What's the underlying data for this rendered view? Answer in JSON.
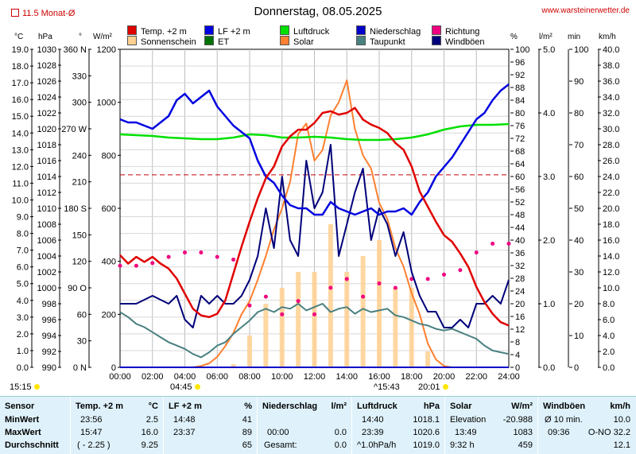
{
  "header": {
    "title": "Donnerstag, 08.05.2025",
    "site": "www.warsteinerwetter.de",
    "month_avg": "11.5 Monat-Ø"
  },
  "legend": [
    {
      "name": "Temp. +2 m",
      "color": "#e00000"
    },
    {
      "name": "LF +2 m",
      "color": "#0000e0"
    },
    {
      "name": "Luftdruck",
      "color": "#00e000"
    },
    {
      "name": "Niederschlag",
      "color": "#0000c8"
    },
    {
      "name": "Richtung",
      "color": "#f00080"
    },
    {
      "name": "Sonnenschein",
      "color": "#ffd090"
    },
    {
      "name": "ET",
      "color": "#007000"
    },
    {
      "name": "Solar",
      "color": "#ff8030"
    },
    {
      "name": "Taupunkt",
      "color": "#4a8080"
    },
    {
      "name": "Windböen",
      "color": "#00007a"
    }
  ],
  "axis_units": {
    "temp": "°C",
    "pressure": "hPa",
    "dir": "°",
    "solar": "W/m²",
    "percent": "%",
    "rain": "l/m²",
    "min": "min",
    "wind": "km/h"
  },
  "annotations": {
    "now": "15:15",
    "sunrise": "04:45",
    "solar_noon": "15:43",
    "sunset": "20:01"
  },
  "chart_data": {
    "type": "line",
    "x_ticks": [
      "00:00",
      "02:00",
      "04:00",
      "06:00",
      "08:00",
      "10:00",
      "12:00",
      "14:00",
      "16:00",
      "18:00",
      "20:00",
      "22:00",
      "24:00"
    ],
    "xlim": [
      0,
      24
    ],
    "axes": {
      "temp": {
        "ticks": [
          "19.0",
          "18.0",
          "17.0",
          "16.0",
          "15.0",
          "14.0",
          "13.0",
          "12.0",
          "11.0",
          "10.0",
          "9.0",
          "8.0",
          "7.0",
          "6.0",
          "5.0",
          "4.0",
          "3.0",
          "2.0",
          "1.0",
          "0.0"
        ],
        "ylim": [
          0,
          19
        ]
      },
      "pressure": {
        "ticks": [
          "1030",
          "1028",
          "1026",
          "1024",
          "1022",
          "1020",
          "1018",
          "1016",
          "1014",
          "1012",
          "1010",
          "1008",
          "1006",
          "1004",
          "1002",
          "1000",
          "998",
          "996",
          "994",
          "992",
          "990"
        ],
        "ylim": [
          990,
          1030
        ]
      },
      "direction": {
        "ticks": [
          "360 N",
          "330",
          "300",
          "270 W",
          "240",
          "210",
          "180 S",
          "150",
          "120",
          "90 O",
          "60",
          "30",
          "0 N"
        ],
        "ylim": [
          0,
          360
        ]
      },
      "solar": {
        "ticks": [
          "1200",
          "1000",
          "800",
          "600",
          "400",
          "200",
          "0"
        ],
        "ylim": [
          0,
          1200
        ]
      },
      "percent": {
        "ticks": [
          "100",
          "96",
          "92",
          "88",
          "84",
          "80",
          "76",
          "72",
          "68",
          "64",
          "60",
          "56",
          "52",
          "48",
          "44",
          "40",
          "36",
          "32",
          "28",
          "24",
          "20",
          "16",
          "12",
          "8",
          "4",
          "0"
        ],
        "ylim": [
          0,
          100
        ]
      },
      "rain": {
        "ticks": [
          "5.0",
          "4.0",
          "3.0",
          "2.0",
          "1.0",
          "0.0"
        ],
        "ylim": [
          0,
          5
        ]
      },
      "minutes": {
        "ticks": [
          "100",
          "90",
          "80",
          "70",
          "60",
          "50",
          "40",
          "30",
          "20",
          "10",
          "0"
        ],
        "ylim": [
          0,
          100
        ]
      },
      "wind": {
        "ticks": [
          "40.0",
          "38.0",
          "36.0",
          "34.0",
          "32.0",
          "30.0",
          "28.0",
          "26.0",
          "24.0",
          "22.0",
          "20.0",
          "18.0",
          "16.0",
          "14.0",
          "12.0",
          "10.0",
          "8.0",
          "6.0",
          "4.0",
          "2.0",
          "0.0"
        ],
        "ylim": [
          0,
          40
        ]
      }
    },
    "month_avg_temp": 11.5,
    "series": [
      {
        "name": "Temp. +2 m",
        "axis": "temp",
        "x": [
          0,
          0.5,
          1,
          1.5,
          2,
          2.5,
          3,
          3.5,
          4,
          4.5,
          5,
          5.5,
          6,
          6.5,
          7,
          7.5,
          8,
          8.5,
          9,
          9.5,
          10,
          10.5,
          11,
          11.5,
          12,
          12.5,
          13,
          13.5,
          14,
          14.5,
          15,
          15.5,
          16,
          16.5,
          17,
          17.5,
          18,
          18.5,
          19,
          19.5,
          20,
          20.5,
          21,
          21.5,
          22,
          22.5,
          23,
          23.5,
          24
        ],
        "y": [
          6.7,
          6.2,
          6.6,
          6.3,
          6.6,
          6.2,
          5.9,
          5.3,
          4.4,
          3.5,
          3.1,
          3.0,
          3.2,
          4.0,
          5.6,
          7.2,
          8.7,
          10.1,
          11.3,
          12.0,
          13.2,
          13.8,
          14.2,
          14.2,
          14.6,
          15.2,
          15.3,
          15.1,
          15.2,
          15.5,
          14.8,
          14.5,
          14.3,
          14.0,
          13.4,
          13.0,
          12.0,
          10.5,
          9.6,
          8.7,
          7.9,
          7.5,
          6.8,
          6.0,
          4.8,
          3.9,
          3.2,
          2.7,
          2.5
        ]
      },
      {
        "name": "LF +2 m",
        "axis": "percent",
        "x": [
          0,
          0.5,
          1,
          1.5,
          2,
          2.5,
          3,
          3.5,
          4,
          4.5,
          5,
          5.5,
          6,
          6.5,
          7,
          7.5,
          8,
          8.5,
          9,
          9.5,
          10,
          10.5,
          11,
          11.5,
          12,
          12.5,
          13,
          13.5,
          14,
          14.5,
          15,
          15.5,
          16,
          16.5,
          17,
          17.5,
          18,
          18.5,
          19,
          19.5,
          20,
          20.5,
          21,
          21.5,
          22,
          22.5,
          23,
          23.5,
          24
        ],
        "y": [
          78,
          77,
          77,
          76,
          75,
          77,
          79,
          84,
          86,
          83,
          85,
          87,
          82,
          79,
          76,
          74,
          72,
          65,
          60,
          58,
          54,
          51,
          50,
          50,
          48,
          48,
          52,
          50,
          49,
          48,
          49,
          50,
          48,
          49,
          49,
          50,
          48,
          52,
          55,
          60,
          63,
          66,
          70,
          74,
          78,
          80,
          84,
          87,
          89
        ]
      },
      {
        "name": "Luftdruck",
        "axis": "pressure",
        "x": [
          0,
          1,
          2,
          3,
          4,
          5,
          6,
          7,
          8,
          9,
          10,
          11,
          12,
          13,
          14,
          15,
          16,
          17,
          18,
          19,
          20,
          21,
          22,
          23,
          24
        ],
        "y": [
          1019.3,
          1019.2,
          1019.1,
          1018.9,
          1018.8,
          1018.7,
          1018.7,
          1018.9,
          1019.3,
          1019.2,
          1018.9,
          1018.9,
          1019.0,
          1018.9,
          1018.7,
          1018.6,
          1018.6,
          1018.7,
          1018.9,
          1019.3,
          1019.9,
          1020.3,
          1020.5,
          1020.5,
          1020.6
        ]
      },
      {
        "name": "Niederschlag",
        "axis": "rain",
        "x": [
          0,
          24
        ],
        "y": [
          0.0,
          0.0
        ]
      },
      {
        "name": "Solar",
        "axis": "solar",
        "x": [
          0,
          4.5,
          5,
          5.5,
          6,
          6.5,
          7,
          7.5,
          8,
          8.5,
          9,
          9.5,
          10,
          10.5,
          11,
          11.5,
          12,
          12.5,
          13,
          13.5,
          14,
          14.5,
          15,
          15.5,
          16,
          16.5,
          17,
          17.5,
          18,
          18.5,
          19,
          19.5,
          20,
          20.5,
          24
        ],
        "y": [
          0,
          0,
          5,
          15,
          40,
          80,
          130,
          200,
          250,
          330,
          420,
          520,
          600,
          700,
          880,
          920,
          780,
          820,
          950,
          1000,
          1083,
          900,
          800,
          750,
          620,
          560,
          450,
          380,
          280,
          200,
          90,
          30,
          5,
          0,
          0
        ]
      },
      {
        "name": "Sonnenschein",
        "axis": "minutes",
        "x": [
          0,
          5,
          7,
          8,
          9,
          10,
          11,
          12,
          13,
          14,
          15,
          16,
          17,
          18,
          19,
          20,
          24
        ],
        "y": [
          0,
          0,
          1,
          10,
          20,
          25,
          30,
          30,
          45,
          30,
          35,
          40,
          25,
          25,
          5,
          0,
          0
        ]
      },
      {
        "name": "Taupunkt",
        "axis": "temp",
        "x": [
          0,
          0.5,
          1,
          1.5,
          2,
          2.5,
          3,
          3.5,
          4,
          4.5,
          5,
          5.5,
          6,
          6.5,
          7,
          7.5,
          8,
          8.5,
          9,
          9.5,
          10,
          10.5,
          11,
          11.5,
          12,
          12.5,
          13,
          13.5,
          14,
          14.5,
          15,
          15.5,
          16,
          16.5,
          17,
          17.5,
          18,
          18.5,
          19,
          19.5,
          20,
          20.5,
          21,
          21.5,
          22,
          22.5,
          23,
          23.5,
          24
        ],
        "y": [
          3.3,
          3.0,
          2.6,
          2.4,
          2.1,
          1.8,
          1.5,
          1.3,
          1.1,
          0.8,
          0.6,
          0.9,
          1.3,
          1.5,
          2.0,
          2.4,
          2.8,
          3.3,
          3.5,
          3.3,
          3.6,
          3.5,
          3.8,
          3.4,
          3.6,
          3.8,
          3.3,
          3.5,
          3.6,
          3.2,
          3.5,
          3.3,
          3.4,
          3.5,
          3.1,
          3.0,
          2.8,
          2.6,
          2.5,
          2.3,
          2.2,
          2.3,
          2.1,
          1.9,
          1.7,
          1.3,
          1.0,
          0.9,
          0.8
        ]
      },
      {
        "name": "Windböen",
        "axis": "wind",
        "x": [
          0,
          1,
          2,
          3,
          3.5,
          4,
          4.5,
          5,
          5.5,
          6,
          6.5,
          7,
          7.5,
          8,
          8.5,
          9,
          9.5,
          10,
          10.5,
          11,
          11.5,
          12,
          12.5,
          13,
          13.5,
          14,
          14.5,
          15,
          15.5,
          16,
          16.5,
          17,
          17.5,
          18,
          18.5,
          19,
          19.5,
          20,
          20.5,
          21,
          21.5,
          22,
          22.5,
          23,
          23.5,
          24
        ],
        "y": [
          8,
          8,
          9,
          8,
          9,
          6,
          5,
          9,
          8,
          9,
          8,
          8,
          9,
          11,
          14,
          20,
          15,
          24,
          16,
          14,
          26,
          20,
          22,
          28,
          14,
          18,
          22,
          25,
          16,
          20,
          18,
          14,
          17,
          12,
          9,
          7,
          7,
          5,
          5,
          6,
          5,
          8,
          8,
          9,
          8,
          11
        ]
      },
      {
        "name": "Richtung",
        "axis": "direction",
        "x": [
          0,
          1,
          2,
          3,
          4,
          5,
          6,
          7,
          8,
          9,
          10,
          11,
          12,
          13,
          14,
          15,
          16,
          17,
          18,
          19,
          20,
          21,
          22,
          23,
          24
        ],
        "y": [
          115,
          115,
          118,
          125,
          130,
          130,
          125,
          122,
          70,
          80,
          60,
          75,
          60,
          90,
          100,
          80,
          95,
          90,
          100,
          100,
          105,
          110,
          130,
          140,
          140
        ]
      }
    ]
  },
  "table": {
    "rows": [
      "Sensor",
      "MinWert",
      "MaxWert",
      "Durchschnitt"
    ],
    "temp": {
      "header": "Temp. +2 m",
      "unit": "°C",
      "min_time": "23:56",
      "min": "2.5",
      "max_time": "15:47",
      "max": "16.0",
      "avg_label": "( - 2.25 )",
      "avg": "9.25"
    },
    "lf": {
      "header": "LF +2 m",
      "unit": "%",
      "min_time": "14:48",
      "min": "41",
      "max_time": "23:37",
      "max": "89",
      "avg": "65"
    },
    "rain": {
      "header": "Niederschlag",
      "unit": "l/m²",
      "max_time": "00:00",
      "max": "0.0",
      "total_label": "Gesamt:",
      "total": "0.0"
    },
    "pressure": {
      "header": "Luftdruck",
      "unit": "hPa",
      "min_time": "14:40",
      "min": "1018.1",
      "max_time": "23:39",
      "max": "1020.6",
      "trend_label": "^1.0hPa/h",
      "avg": "1019.0"
    },
    "solar": {
      "header": "Solar",
      "unit": "W/m²",
      "min_label": "Elevation",
      "min": "-20.988",
      "max_time": "13:49",
      "max": "1083",
      "avg_label": "9:32 h",
      "avg": "459"
    },
    "gust": {
      "header": "Windböen",
      "unit": "km/h",
      "min_label": "Ø 10 min.",
      "min": "10.0",
      "max_time": "09:36",
      "max": "O-NO 32.2",
      "avg": "12.1"
    }
  }
}
